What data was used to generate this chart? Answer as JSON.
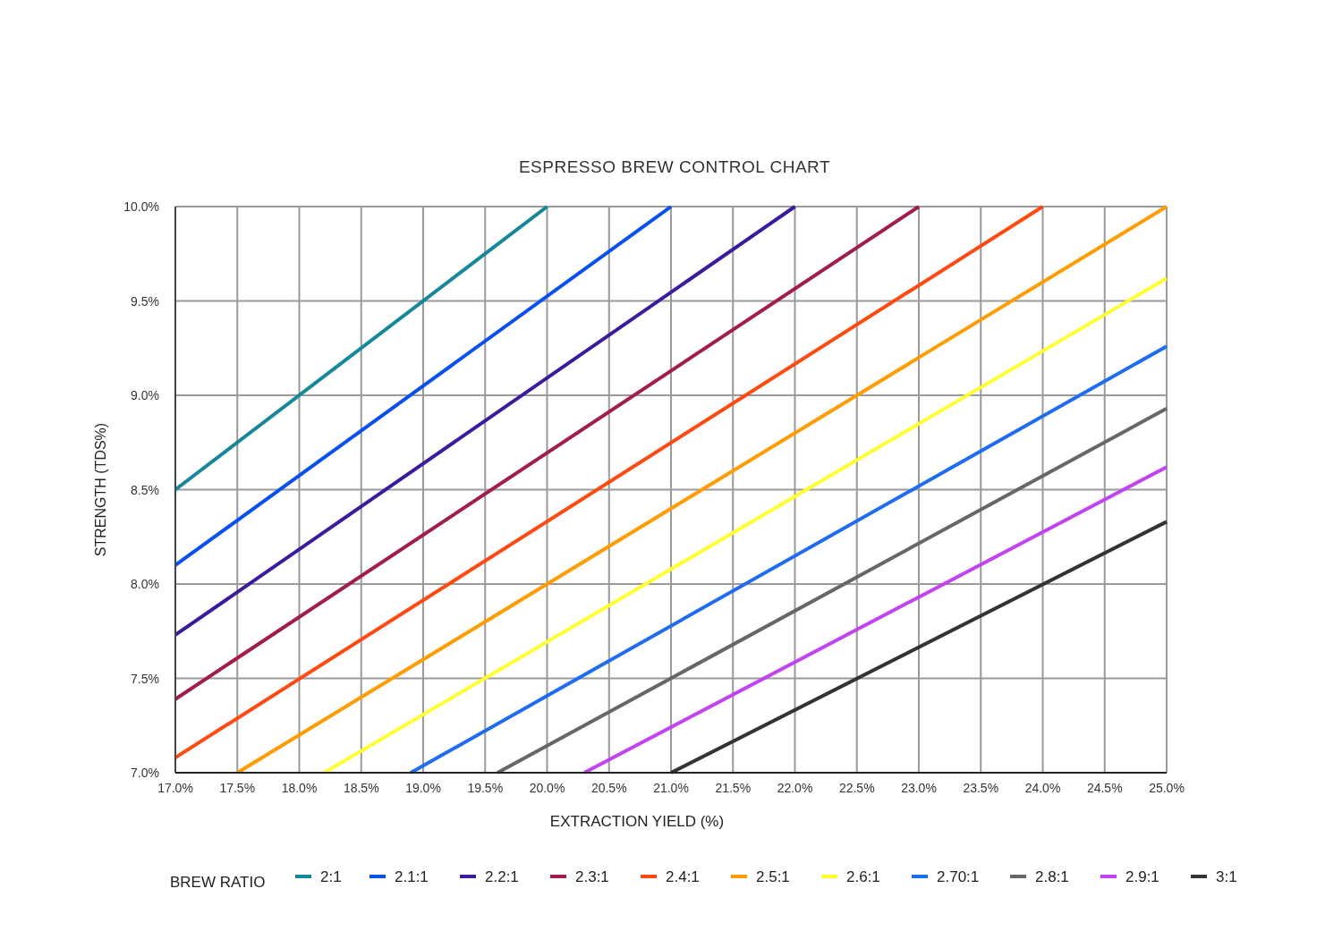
{
  "chart_data": {
    "type": "line",
    "title": "ESPRESSO BREW CONTROL CHART",
    "xlabel": "EXTRACTION YIELD (%)",
    "ylabel": "STRENGTH (TDS%)",
    "legend_title": "BREW RATIO",
    "legend": "bottom",
    "grid": true,
    "xlim": [
      17,
      25
    ],
    "ylim": [
      7,
      10
    ],
    "xticks": [
      {
        "value": 17,
        "label": "17.0%"
      },
      {
        "value": 17.5,
        "label": "17.5%"
      },
      {
        "value": 18,
        "label": "18.0%"
      },
      {
        "value": 18.5,
        "label": "18.5%"
      },
      {
        "value": 19,
        "label": "19.0%"
      },
      {
        "value": 19.5,
        "label": "19.5%"
      },
      {
        "value": 20,
        "label": "20.0%"
      },
      {
        "value": 20.5,
        "label": "20.5%"
      },
      {
        "value": 21,
        "label": "21.0%"
      },
      {
        "value": 21.5,
        "label": "21.5%"
      },
      {
        "value": 22,
        "label": "22.0%"
      },
      {
        "value": 22.5,
        "label": "22.5%"
      },
      {
        "value": 23,
        "label": "23.0%"
      },
      {
        "value": 23.5,
        "label": "23.5%"
      },
      {
        "value": 24,
        "label": "24.0%"
      },
      {
        "value": 24.5,
        "label": "24.5%"
      },
      {
        "value": 25,
        "label": "25.0%"
      }
    ],
    "yticks": [
      {
        "value": 7,
        "label": "7.0%"
      },
      {
        "value": 7.5,
        "label": "7.5%"
      },
      {
        "value": 8,
        "label": "8.0%"
      },
      {
        "value": 8.5,
        "label": "8.5%"
      },
      {
        "value": 9,
        "label": "9.0%"
      },
      {
        "value": 9.5,
        "label": "9.5%"
      },
      {
        "value": 10,
        "label": "10.0%"
      }
    ],
    "series": [
      {
        "name": "2:1",
        "color": "#17879a",
        "x": [
          17,
          20
        ],
        "values": [
          8.5,
          10
        ]
      },
      {
        "name": "2.1:1",
        "color": "#0a50f0",
        "x": [
          17,
          21
        ],
        "values": [
          8.1,
          10
        ]
      },
      {
        "name": "2.2:1",
        "color": "#3b1a9c",
        "x": [
          17,
          22
        ],
        "values": [
          7.73,
          10
        ]
      },
      {
        "name": "2.3:1",
        "color": "#a11d4c",
        "x": [
          17,
          23
        ],
        "values": [
          7.39,
          10
        ]
      },
      {
        "name": "2.4:1",
        "color": "#ff4a12",
        "x": [
          17,
          24
        ],
        "values": [
          7.08,
          10
        ]
      },
      {
        "name": "2.5:1",
        "color": "#ff9c00",
        "x": [
          17.5,
          25
        ],
        "values": [
          7,
          10
        ]
      },
      {
        "name": "2.6:1",
        "color": "#ffff33",
        "x": [
          18.2,
          25
        ],
        "values": [
          7,
          9.62
        ]
      },
      {
        "name": "2.70:1",
        "color": "#1f6cf2",
        "x": [
          18.9,
          25
        ],
        "values": [
          7,
          9.26
        ]
      },
      {
        "name": "2.8:1",
        "color": "#676767",
        "x": [
          19.6,
          25
        ],
        "values": [
          7,
          8.93
        ]
      },
      {
        "name": "2.9:1",
        "color": "#c343f2",
        "x": [
          20.3,
          25
        ],
        "values": [
          7,
          8.62
        ]
      },
      {
        "name": "3:1",
        "color": "#333333",
        "x": [
          21,
          25
        ],
        "values": [
          7,
          8.33
        ]
      }
    ]
  }
}
